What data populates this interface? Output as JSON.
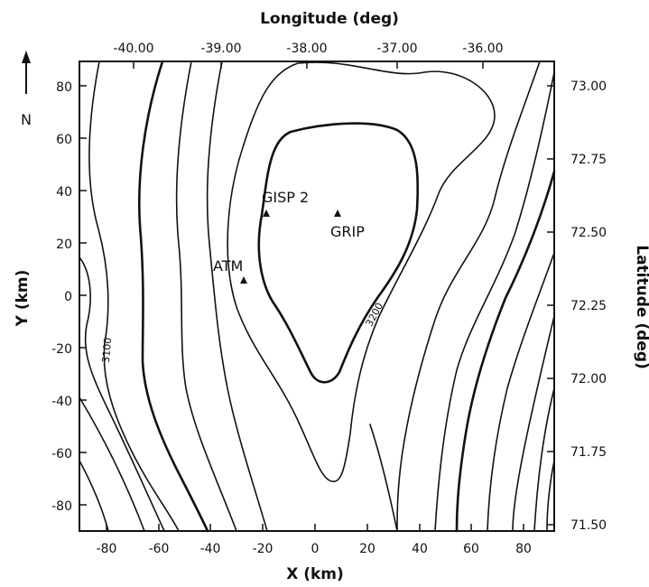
{
  "top_axis": {
    "title": "Longitude (deg)",
    "ticks": [
      "-40.00",
      "-39.00",
      "-38.00",
      "-37.00",
      "-36.00"
    ]
  },
  "bottom_axis": {
    "title": "X (km)",
    "ticks": [
      "-80",
      "-60",
      "-40",
      "-20",
      "0",
      "20",
      "40",
      "60",
      "80"
    ]
  },
  "left_axis": {
    "title": "Y (km)",
    "ticks": [
      "80",
      "60",
      "40",
      "20",
      "0",
      "-20",
      "-40",
      "-60",
      "-80"
    ]
  },
  "right_axis": {
    "title": "Latitude (deg)",
    "ticks": [
      "73.00",
      "72.75",
      "72.50",
      "72.25",
      "72.00",
      "71.75",
      "71.50"
    ]
  },
  "north_arrow": {
    "label": "N"
  },
  "sites": [
    {
      "name": "GISP 2",
      "x_km": -18,
      "y_km": 32
    },
    {
      "name": "GRIP",
      "x_km": 8,
      "y_km": 32
    },
    {
      "name": "ATM",
      "x_km": -27,
      "y_km": 6
    }
  ],
  "contour_labels": [
    "3200",
    "3100"
  ],
  "colors": {
    "ink": "#111111",
    "background": "#ffffff"
  }
}
